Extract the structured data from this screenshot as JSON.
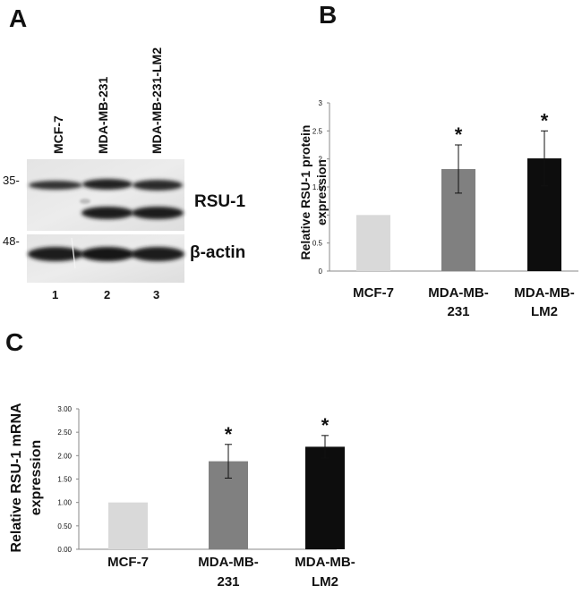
{
  "panels": {
    "a": "A",
    "b": "B",
    "c": "C"
  },
  "blot": {
    "lanes": [
      "MCF-7",
      "MDA-MB-231",
      "MDA-MB-231-LM2"
    ],
    "lane_numbers": [
      "1",
      "2",
      "3"
    ],
    "markers": [
      "35-",
      "48-"
    ],
    "bands": [
      "RSU-1",
      "β-actin"
    ]
  },
  "chart_data": [
    {
      "type": "bar",
      "categories": [
        [
          "MCF-7"
        ],
        [
          "MDA-MB-",
          "231"
        ],
        [
          "MDA-MB-",
          "LM2"
        ]
      ],
      "values": [
        1.0,
        1.82,
        2.01
      ],
      "errors": [
        0,
        0.43,
        0.49
      ],
      "significance": [
        "",
        "*",
        "*"
      ],
      "colors": [
        "#d9d9d9",
        "#808080",
        "#0d0d0d"
      ],
      "ylabel": [
        "Relative RSU-1 protein",
        "expression"
      ],
      "ylim": [
        0,
        3
      ],
      "yticks": [
        "0",
        "0.5",
        "1",
        "1.5",
        "2",
        "2.5",
        "3"
      ],
      "grid": false
    },
    {
      "type": "bar",
      "categories": [
        [
          "MCF-7"
        ],
        [
          "MDA-MB-",
          "231"
        ],
        [
          "MDA-MB-",
          "LM2"
        ]
      ],
      "values": [
        1.0,
        1.88,
        2.19
      ],
      "errors": [
        0,
        0.36,
        0.24
      ],
      "significance": [
        "",
        "*",
        "*"
      ],
      "colors": [
        "#d9d9d9",
        "#808080",
        "#0d0d0d"
      ],
      "ylabel": [
        "Relative RSU-1 mRNA",
        "expression"
      ],
      "ylim": [
        0,
        3
      ],
      "yticks": [
        "0.00",
        "0.50",
        "1.00",
        "1.50",
        "2.00",
        "2.50",
        "3.00"
      ],
      "grid": false
    }
  ]
}
